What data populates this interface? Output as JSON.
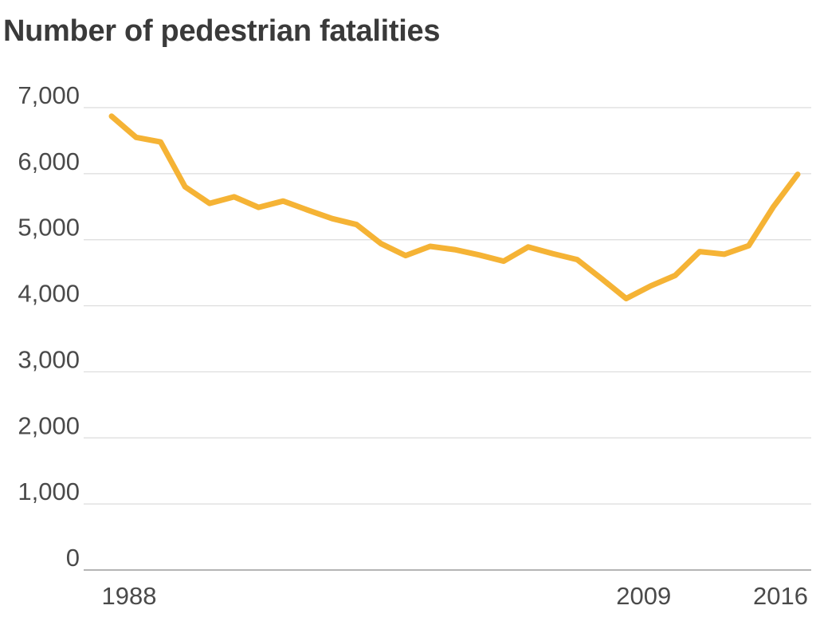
{
  "chart_data": {
    "type": "line",
    "title": "Number of pedestrian fatalities",
    "xlabel": "",
    "ylabel": "",
    "ylim": [
      0,
      7000
    ],
    "yticks": [
      0,
      1000,
      2000,
      3000,
      4000,
      5000,
      6000,
      7000
    ],
    "ytick_labels": [
      "0",
      "1,000",
      "2,000",
      "3,000",
      "4,000",
      "5,000",
      "6,000",
      "7,000"
    ],
    "xlim": [
      1988,
      2016
    ],
    "xticks": [
      1988,
      2009,
      2016
    ],
    "xtick_labels": [
      "1988",
      "2009",
      "2016"
    ],
    "grid": true,
    "legend": false,
    "series": [
      {
        "color": "#f5b335",
        "x": [
          1988,
          1989,
          1990,
          1991,
          1992,
          1993,
          1994,
          1995,
          1996,
          1997,
          1998,
          1999,
          2000,
          2001,
          2002,
          2003,
          2004,
          2005,
          2006,
          2007,
          2008,
          2009,
          2010,
          2011,
          2012,
          2013,
          2014,
          2015,
          2016
        ],
        "values": [
          6870,
          6550,
          6480,
          5800,
          5550,
          5650,
          5490,
          5585,
          5450,
          5320,
          5230,
          4940,
          4760,
          4900,
          4850,
          4770,
          4675,
          4890,
          4790,
          4700,
          4410,
          4110,
          4300,
          4460,
          4820,
          4780,
          4910,
          5495,
          5990
        ]
      }
    ]
  }
}
